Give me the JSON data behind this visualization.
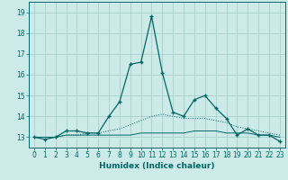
{
  "xlabel": "Humidex (Indice chaleur)",
  "bg_color": "#cceae8",
  "grid_color": "#aacfcd",
  "line_color": "#006666",
  "x_values": [
    0,
    1,
    2,
    3,
    4,
    5,
    6,
    7,
    8,
    9,
    10,
    11,
    12,
    13,
    14,
    15,
    16,
    17,
    18,
    19,
    20,
    21,
    22,
    23
  ],
  "series1": [
    13.0,
    12.9,
    13.0,
    13.3,
    13.3,
    13.2,
    13.2,
    14.0,
    14.7,
    16.5,
    16.6,
    18.8,
    16.1,
    14.2,
    14.0,
    14.8,
    15.0,
    14.4,
    13.9,
    13.1,
    13.4,
    13.1,
    13.1,
    12.8
  ],
  "series2": [
    13.0,
    13.0,
    13.0,
    13.1,
    13.1,
    13.1,
    13.1,
    13.1,
    13.1,
    13.1,
    13.2,
    13.2,
    13.2,
    13.2,
    13.2,
    13.3,
    13.3,
    13.3,
    13.2,
    13.2,
    13.2,
    13.1,
    13.1,
    13.0
  ],
  "series3": [
    13.0,
    13.0,
    13.0,
    13.1,
    13.1,
    13.2,
    13.2,
    13.3,
    13.4,
    13.6,
    13.8,
    14.0,
    14.1,
    14.0,
    13.9,
    13.9,
    13.9,
    13.8,
    13.7,
    13.5,
    13.4,
    13.3,
    13.2,
    13.1
  ],
  "ylim": [
    12.5,
    19.5
  ],
  "yticks": [
    13,
    14,
    15,
    16,
    17,
    18,
    19
  ],
  "xlim": [
    -0.5,
    23.5
  ],
  "xticks": [
    0,
    1,
    2,
    3,
    4,
    5,
    6,
    7,
    8,
    9,
    10,
    11,
    12,
    13,
    14,
    15,
    16,
    17,
    18,
    19,
    20,
    21,
    22,
    23
  ]
}
